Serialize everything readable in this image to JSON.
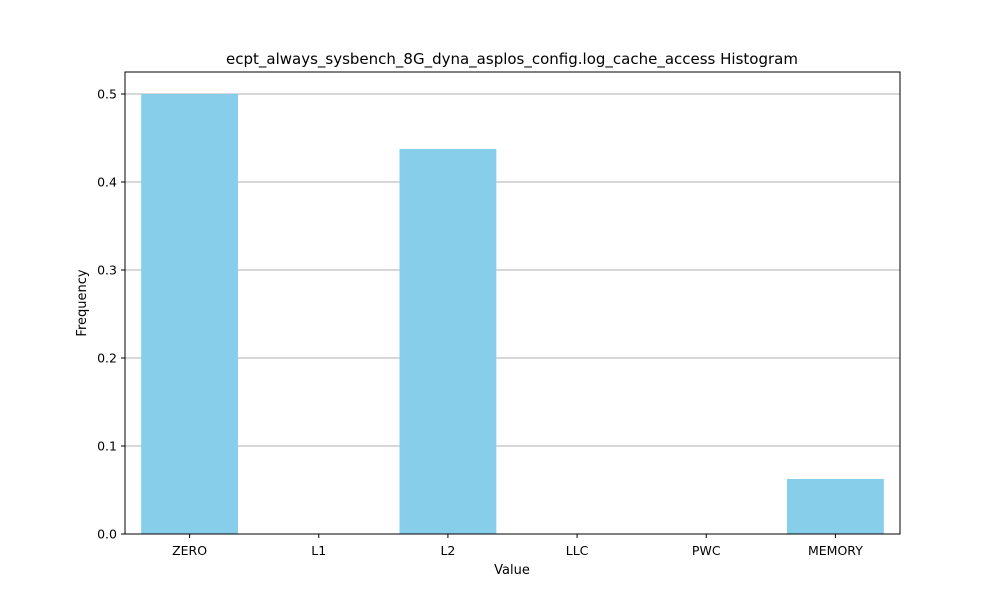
{
  "chart_data": {
    "type": "bar",
    "title": "ecpt_always_sysbench_8G_dyna_asplos_config.log_cache_access Histogram",
    "xlabel": "Value",
    "ylabel": "Frequency",
    "categories": [
      "ZERO",
      "L1",
      "L2",
      "LLC",
      "PWC",
      "MEMORY"
    ],
    "values": [
      0.5,
      0.0,
      0.4375,
      0.0,
      0.0,
      0.0625
    ],
    "ylim": [
      0,
      0.525
    ],
    "yticks": [
      "0.0",
      "0.1",
      "0.2",
      "0.3",
      "0.4",
      "0.5"
    ],
    "grid": "y",
    "bar_color": "#87CEEB"
  }
}
